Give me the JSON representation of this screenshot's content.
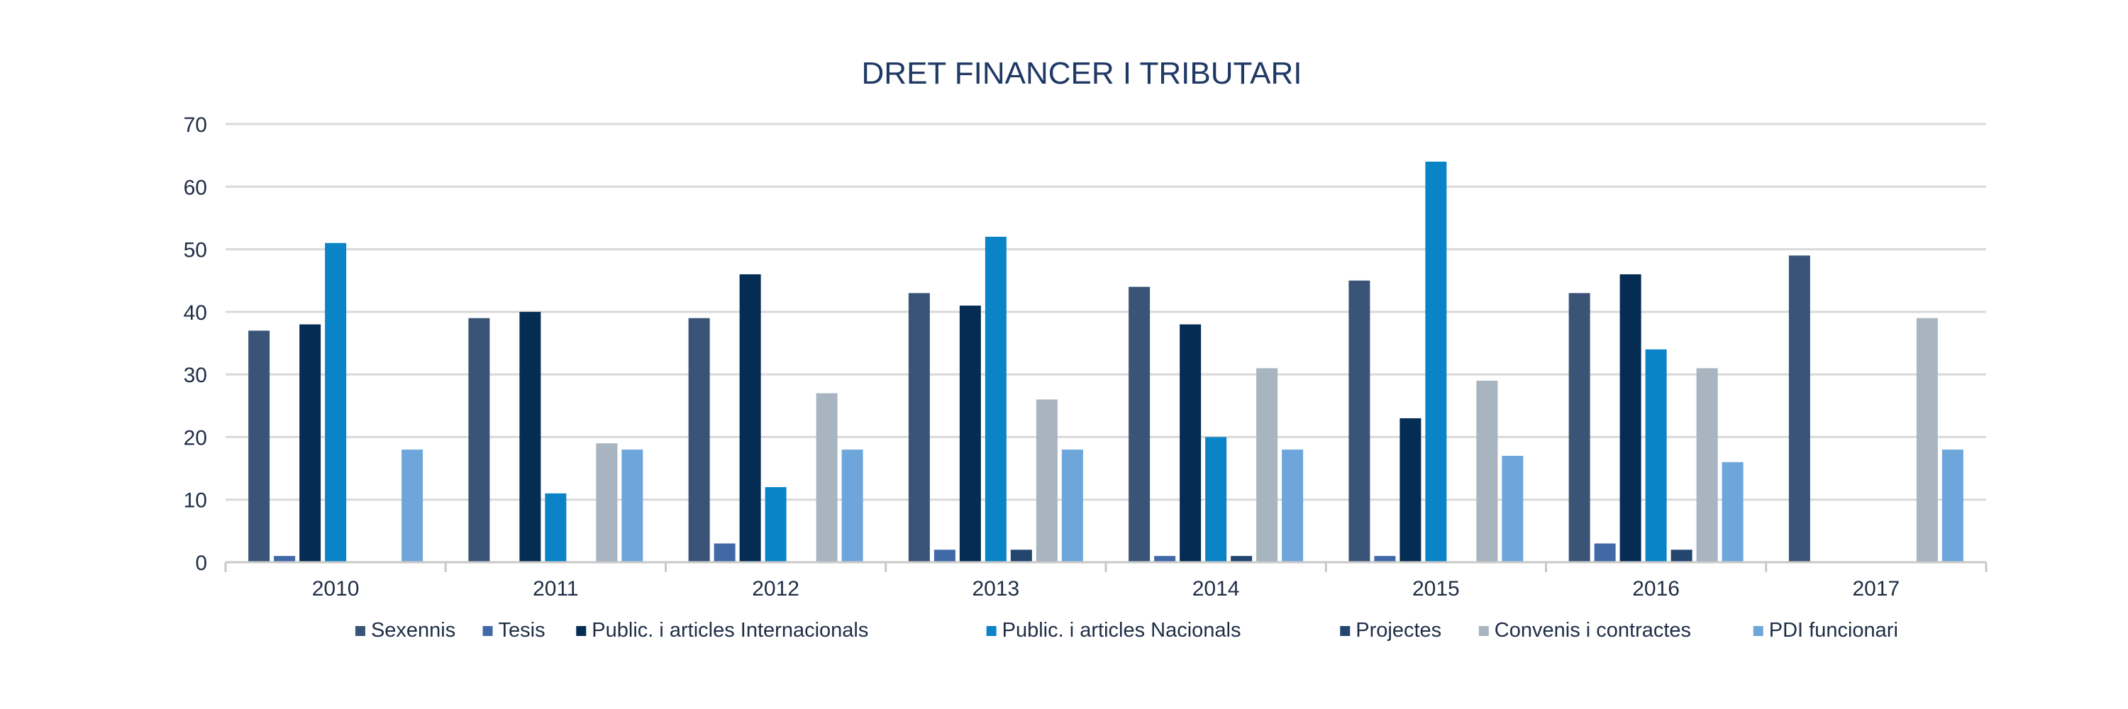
{
  "chart_data": {
    "type": "bar",
    "title": "DRET FINANCER I TRIBUTARI",
    "xlabel": "",
    "ylabel": "",
    "ylim": [
      0,
      70
    ],
    "yticks": [
      0,
      10,
      20,
      30,
      40,
      50,
      60,
      70
    ],
    "grid": true,
    "legend_position": "bottom",
    "categories": [
      "2010",
      "2011",
      "2012",
      "2013",
      "2014",
      "2015",
      "2016",
      "2017"
    ],
    "series": [
      {
        "name": "Sexennis",
        "color": "#3a5478",
        "values": [
          37,
          39,
          39,
          43,
          44,
          45,
          43,
          49
        ]
      },
      {
        "name": "Tesis",
        "color": "#4169a8",
        "values": [
          1,
          null,
          3,
          2,
          1,
          1,
          3,
          null
        ]
      },
      {
        "name": "Public. i articles Internacionals",
        "color": "#052c52",
        "values": [
          38,
          40,
          46,
          41,
          38,
          23,
          46,
          null
        ]
      },
      {
        "name": "Public. i articles Nacionals",
        "color": "#0a84c6",
        "values": [
          51,
          11,
          12,
          52,
          20,
          64,
          34,
          null
        ]
      },
      {
        "name": "Projectes",
        "color": "#23466f",
        "values": [
          null,
          null,
          null,
          2,
          1,
          null,
          2,
          null
        ]
      },
      {
        "name": "Convenis i contractes",
        "color": "#a8b4bf",
        "values": [
          null,
          19,
          27,
          26,
          31,
          29,
          31,
          39
        ]
      },
      {
        "name": "PDI funcionari",
        "color": "#6ea6dc",
        "values": [
          18,
          18,
          18,
          18,
          18,
          17,
          16,
          18
        ]
      }
    ]
  }
}
